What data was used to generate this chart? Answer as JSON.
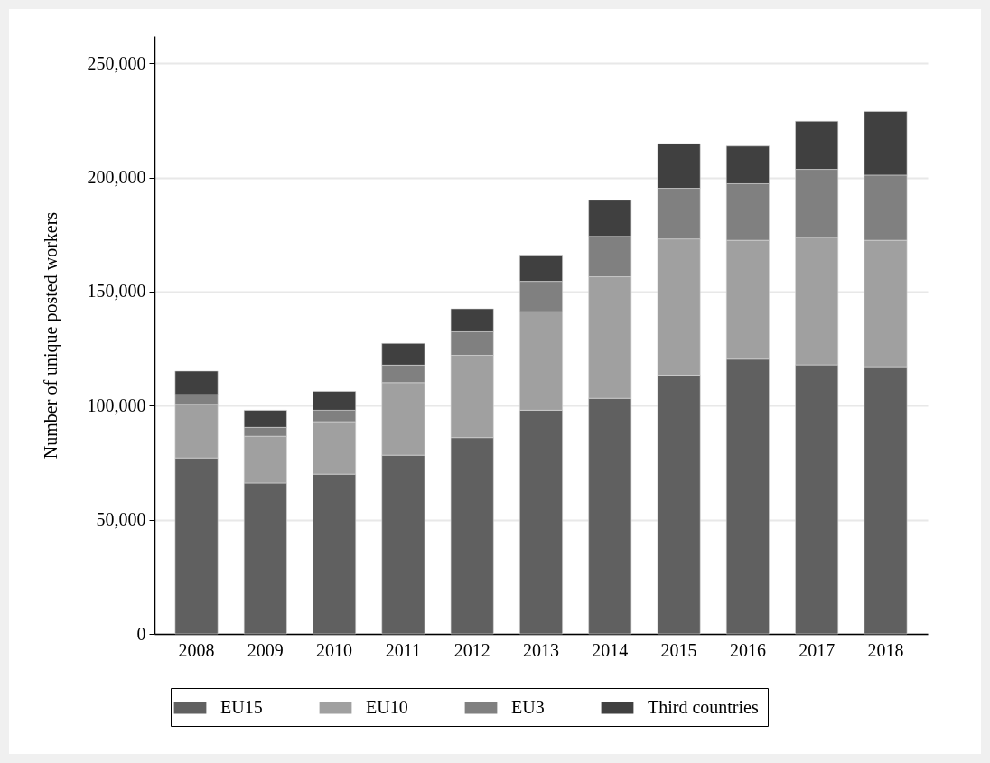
{
  "chart_data": {
    "type": "bar",
    "stacked": true,
    "ylabel": "Number of unique posted workers",
    "categories": [
      "2008",
      "2009",
      "2010",
      "2011",
      "2012",
      "2013",
      "2014",
      "2015",
      "2016",
      "2017",
      "2018"
    ],
    "series": [
      {
        "name": "EU15",
        "color": "#606060",
        "values": [
          77100,
          66100,
          70000,
          78300,
          86000,
          98000,
          103200,
          113400,
          120400,
          117900,
          117100
        ]
      },
      {
        "name": "EU10",
        "color": "#a0a0a0",
        "values": [
          23500,
          20500,
          23000,
          31800,
          36100,
          43200,
          53300,
          59700,
          52100,
          55900,
          55400
        ]
      },
      {
        "name": "EU3",
        "color": "#808080",
        "values": [
          4300,
          3900,
          5000,
          7700,
          10300,
          13300,
          17700,
          22200,
          24800,
          29800,
          28600
        ]
      },
      {
        "name": "Third countries",
        "color": "#404040",
        "values": [
          10300,
          7500,
          8300,
          9500,
          10100,
          11500,
          15900,
          19600,
          16500,
          21100,
          27900
        ]
      }
    ],
    "ylim": [
      0,
      262000
    ],
    "yticks": [
      {
        "value": 0,
        "label": "0"
      },
      {
        "value": 50000,
        "label": "50,000"
      },
      {
        "value": 100000,
        "label": "100,000"
      },
      {
        "value": 150000,
        "label": "150,000"
      },
      {
        "value": 200000,
        "label": "200,000"
      },
      {
        "value": 250000,
        "label": "250,000"
      }
    ],
    "grid": "y",
    "legend": "bottom"
  }
}
